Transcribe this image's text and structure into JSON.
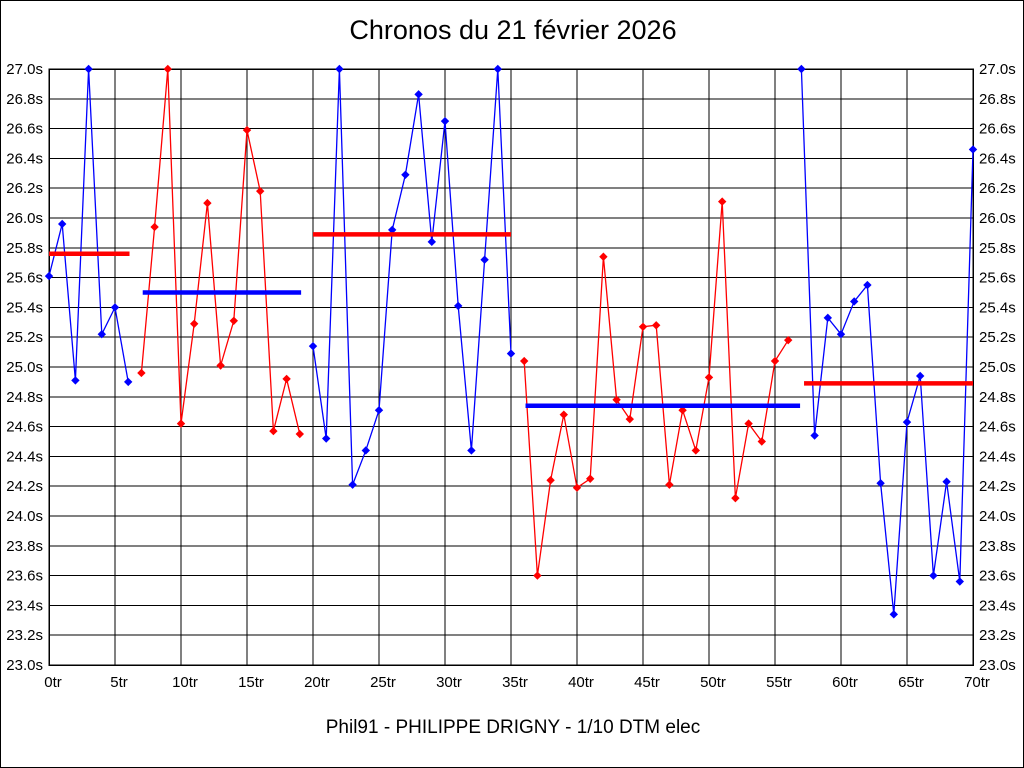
{
  "chart_data": {
    "type": "line",
    "title": "Chronos du 21 février 2026",
    "footer": "Phil91 - PHILIPPE DRIGNY - 1/10 DTM elec",
    "x_unit": "tr",
    "y_unit": "s",
    "xlim": [
      0,
      70
    ],
    "ylim": [
      23.0,
      27.0
    ],
    "grid": true,
    "x_ticks": [
      0,
      5,
      10,
      15,
      20,
      25,
      30,
      35,
      40,
      45,
      50,
      55,
      60,
      65,
      70
    ],
    "x_tick_labels": [
      "0tr",
      "5tr",
      "10tr",
      "15tr",
      "20tr",
      "25tr",
      "30tr",
      "35tr",
      "40tr",
      "45tr",
      "50tr",
      "55tr",
      "60tr",
      "65tr",
      "70tr"
    ],
    "y_ticks": [
      27.0,
      26.8,
      26.6,
      26.4,
      26.2,
      26.0,
      25.8,
      25.6,
      25.4,
      25.2,
      25.0,
      24.8,
      24.6,
      24.4,
      24.2,
      24.0,
      23.8,
      23.6,
      23.4,
      23.2,
      23.0
    ],
    "y_tick_labels": [
      "27.0s",
      "26.8s",
      "26.6s",
      "26.4s",
      "26.2s",
      "26.0s",
      "25.8s",
      "25.6s",
      "25.4s",
      "25.2s",
      "25.0s",
      "24.8s",
      "24.6s",
      "24.4s",
      "24.2s",
      "24.0s",
      "23.8s",
      "23.6s",
      "23.4s",
      "23.2s",
      "23.0s"
    ],
    "series": [
      {
        "name": "laps-0-6",
        "color": "#0000ff",
        "start_lap": 0,
        "values": [
          25.61,
          25.96,
          24.91,
          27.0,
          25.22,
          25.4,
          24.9
        ]
      },
      {
        "name": "laps-7-19",
        "color": "#ff0000",
        "start_lap": 7,
        "values": [
          24.96,
          25.94,
          27.0,
          24.62,
          25.29,
          26.1,
          25.01,
          25.31,
          26.59,
          26.18,
          24.57,
          24.92,
          24.55
        ]
      },
      {
        "name": "laps-20-35",
        "color": "#0000ff",
        "start_lap": 20,
        "values": [
          25.14,
          24.52,
          27.0,
          24.21,
          24.44,
          24.71,
          25.92,
          26.29,
          26.83,
          25.84,
          26.65,
          25.41,
          24.44,
          25.72,
          27.0,
          25.09
        ]
      },
      {
        "name": "laps-36-56",
        "color": "#ff0000",
        "start_lap": 36,
        "values": [
          25.04,
          23.6,
          24.24,
          24.68,
          24.19,
          24.25,
          25.74,
          24.78,
          24.65,
          25.27,
          25.28,
          24.21,
          24.71,
          24.44,
          24.93,
          26.11,
          24.12,
          24.62,
          24.5,
          25.04,
          25.18
        ]
      },
      {
        "name": "laps-57-70",
        "color": "#0000ff",
        "start_lap": 57,
        "values": [
          27.0,
          24.54,
          25.33,
          25.22,
          25.44,
          25.55,
          24.22,
          23.34,
          24.63,
          24.94,
          23.6,
          24.23,
          23.56,
          26.46
        ]
      }
    ],
    "mean_lines": [
      {
        "name": "mean-laps-0-6",
        "color": "#ff0000",
        "y": 25.76,
        "x1": 0.0,
        "x2": 6.1
      },
      {
        "name": "mean-laps-7-19",
        "color": "#0000ff",
        "y": 25.5,
        "x1": 7.1,
        "x2": 19.1
      },
      {
        "name": "mean-laps-20-35",
        "color": "#ff0000",
        "y": 25.89,
        "x1": 20.0,
        "x2": 35.0
      },
      {
        "name": "mean-laps-36-56",
        "color": "#0000ff",
        "y": 24.74,
        "x1": 36.1,
        "x2": 56.9
      },
      {
        "name": "mean-laps-57-70",
        "color": "#ff0000",
        "y": 24.89,
        "x1": 57.2,
        "x2": 70.0
      }
    ],
    "legend_position": "none"
  },
  "colors": {
    "blue_series": "#0000ff",
    "red_series": "#ff0000",
    "grid": "#000000",
    "background": "#ffffff",
    "text": "#000000"
  }
}
